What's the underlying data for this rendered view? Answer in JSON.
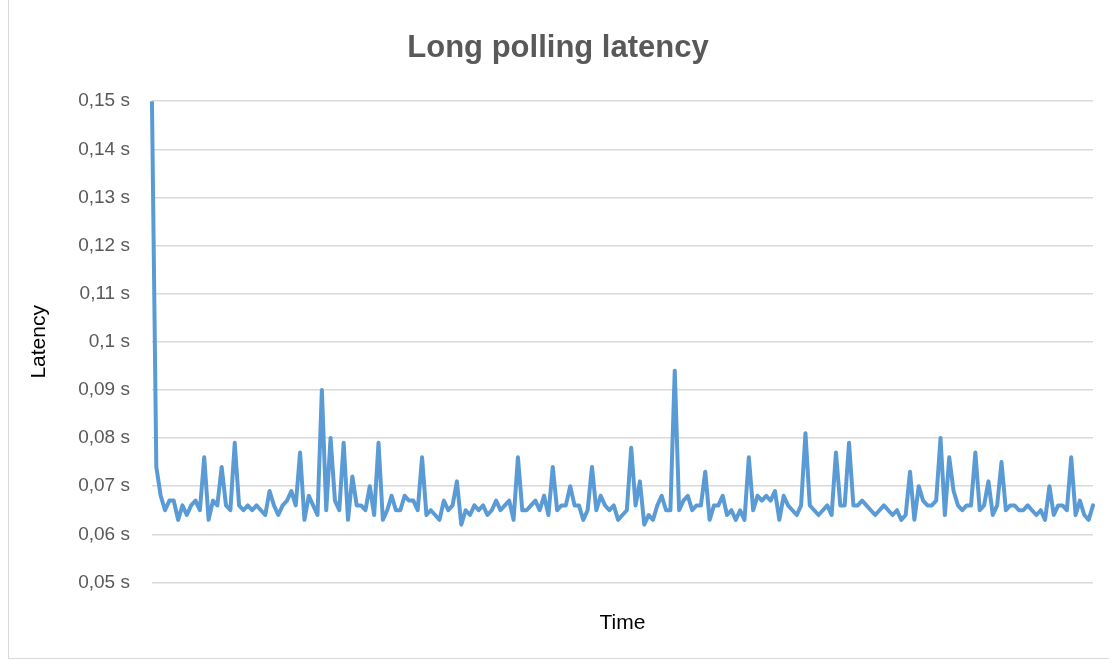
{
  "chart_data": {
    "type": "line",
    "title": "Long polling latency",
    "xlabel": "Time",
    "ylabel": "Latency",
    "categories": [
      null,
      null,
      null,
      null,
      null,
      null,
      null,
      null,
      null,
      null,
      null,
      null,
      null,
      null,
      null,
      null,
      null,
      null,
      null,
      null,
      null,
      null,
      null,
      null,
      null,
      null,
      null,
      null,
      null,
      null,
      null,
      null,
      null,
      null,
      null,
      null,
      null,
      null,
      null,
      null,
      null,
      null,
      null,
      null,
      null,
      null,
      null,
      null,
      null,
      null,
      null,
      null,
      null,
      null,
      null,
      null,
      null,
      null,
      null,
      null,
      null,
      null,
      null,
      null,
      null,
      null,
      null,
      null,
      null,
      null,
      null,
      null,
      null,
      null,
      null,
      null,
      null,
      null,
      null,
      null,
      null,
      null,
      null,
      null,
      null,
      null,
      null,
      null,
      null,
      null,
      null,
      null,
      null,
      null,
      null,
      null,
      null,
      null,
      null,
      null,
      null,
      null,
      null,
      null,
      null,
      null,
      null,
      null,
      null,
      null,
      null,
      null,
      null,
      null,
      null,
      null,
      null,
      null,
      null,
      null,
      null,
      null,
      null,
      null,
      null,
      null,
      null,
      null,
      null,
      null,
      null,
      null,
      null,
      null,
      null,
      null,
      null,
      null,
      null,
      null,
      null,
      null,
      null,
      null,
      null,
      null,
      null,
      null,
      null,
      null,
      null,
      null,
      null,
      null,
      null,
      null,
      null,
      null,
      null,
      null,
      null,
      null,
      null,
      null,
      null,
      null,
      null,
      null,
      null,
      null,
      null,
      null,
      null,
      null,
      null,
      null,
      null,
      null,
      null,
      null,
      null,
      null,
      null,
      null,
      null,
      null,
      null,
      null,
      null,
      null,
      null,
      null,
      null,
      null,
      null,
      null,
      null,
      null,
      null,
      null,
      null,
      null,
      null,
      null,
      null,
      null,
      null,
      null,
      null,
      null,
      null,
      null,
      null,
      null,
      null,
      null,
      null
    ],
    "series": [
      {
        "color": "#5b9bd5",
        "values": [
          0.15,
          0.074,
          0.068,
          0.065,
          0.067,
          0.067,
          0.063,
          0.066,
          0.064,
          0.066,
          0.067,
          0.065,
          0.076,
          0.063,
          0.067,
          0.066,
          0.074,
          0.066,
          0.065,
          0.079,
          0.066,
          0.065,
          0.066,
          0.065,
          0.066,
          0.065,
          0.064,
          0.069,
          0.066,
          0.064,
          0.066,
          0.067,
          0.069,
          0.066,
          0.077,
          0.063,
          0.068,
          0.066,
          0.064,
          0.09,
          0.065,
          0.08,
          0.067,
          0.065,
          0.079,
          0.063,
          0.072,
          0.066,
          0.066,
          0.065,
          0.07,
          0.064,
          0.079,
          0.063,
          0.065,
          0.068,
          0.065,
          0.065,
          0.068,
          0.067,
          0.067,
          0.065,
          0.076,
          0.064,
          0.065,
          0.064,
          0.063,
          0.067,
          0.065,
          0.066,
          0.071,
          0.062,
          0.065,
          0.064,
          0.066,
          0.065,
          0.066,
          0.064,
          0.065,
          0.067,
          0.065,
          0.066,
          0.067,
          0.063,
          0.076,
          0.065,
          0.065,
          0.066,
          0.067,
          0.065,
          0.068,
          0.064,
          0.074,
          0.065,
          0.066,
          0.066,
          0.07,
          0.066,
          0.066,
          0.063,
          0.065,
          0.074,
          0.065,
          0.068,
          0.066,
          0.065,
          0.066,
          0.063,
          0.064,
          0.065,
          0.078,
          0.066,
          0.071,
          0.062,
          0.064,
          0.063,
          0.066,
          0.068,
          0.065,
          0.065,
          0.094,
          0.065,
          0.067,
          0.068,
          0.065,
          0.066,
          0.066,
          0.073,
          0.063,
          0.066,
          0.066,
          0.068,
          0.064,
          0.065,
          0.063,
          0.065,
          0.063,
          0.076,
          0.065,
          0.068,
          0.067,
          0.068,
          0.067,
          0.069,
          0.063,
          0.068,
          0.066,
          0.065,
          0.064,
          0.066,
          0.081,
          0.066,
          0.065,
          0.064,
          0.065,
          0.066,
          0.064,
          0.077,
          0.066,
          0.066,
          0.079,
          0.066,
          0.066,
          0.067,
          0.066,
          0.065,
          0.064,
          0.065,
          0.066,
          0.065,
          0.064,
          0.065,
          0.063,
          0.064,
          0.073,
          0.063,
          0.07,
          0.067,
          0.066,
          0.066,
          0.067,
          0.08,
          0.064,
          0.076,
          0.069,
          0.066,
          0.065,
          0.066,
          0.066,
          0.077,
          0.065,
          0.066,
          0.071,
          0.064,
          0.066,
          0.075,
          0.065,
          0.066,
          0.066,
          0.065,
          0.065,
          0.066,
          0.065,
          0.064,
          0.065,
          0.063,
          0.07,
          0.064,
          0.066,
          0.066,
          0.065,
          0.076,
          0.064,
          0.067,
          0.064,
          0.063,
          0.066
        ]
      }
    ],
    "ylim": [
      0.05,
      0.15
    ],
    "yticks": [
      {
        "value": 0.05,
        "label": "0,05 s"
      },
      {
        "value": 0.06,
        "label": "0,06 s"
      },
      {
        "value": 0.07,
        "label": "0,07 s"
      },
      {
        "value": 0.08,
        "label": "0,08 s"
      },
      {
        "value": 0.09,
        "label": "0,09 s"
      },
      {
        "value": 0.1,
        "label": "0,1 s"
      },
      {
        "value": 0.11,
        "label": "0,11 s"
      },
      {
        "value": 0.12,
        "label": "0,12 s"
      },
      {
        "value": 0.13,
        "label": "0,13 s"
      },
      {
        "value": 0.14,
        "label": "0,14 s"
      },
      {
        "value": 0.15,
        "label": "0,15 s"
      }
    ],
    "grid": "y",
    "legend": false,
    "marker": "none",
    "line_style": "solid"
  }
}
